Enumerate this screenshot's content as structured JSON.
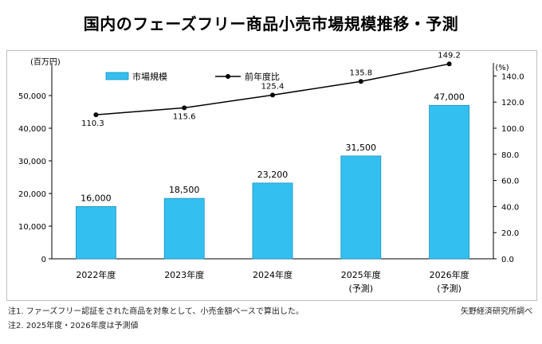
{
  "title": "国内のフェーズフリー商品小売市場規模推移・予測",
  "notes": {
    "note1": "注1. ファーズフリー認証をされた商品を対象として、小売金額ベースで算出した。",
    "note2": "注2. 2025年度・2026年度は予測値",
    "source": "矢野経済研究所調べ"
  },
  "colors": {
    "bar": "#33c0f0",
    "bar_stroke": "#1a8fc0",
    "line": "#000000"
  },
  "chart_data": {
    "type": "bar+line",
    "categories": [
      "2022年度",
      "2023年度",
      "2024年度",
      "2025年度",
      "2026年度"
    ],
    "category_sublabels": [
      "",
      "",
      "",
      "(予測)",
      "(予測)"
    ],
    "series": [
      {
        "name": "市場規模",
        "type": "bar",
        "axis": "left",
        "values": [
          16000,
          18500,
          23200,
          31500,
          47000
        ],
        "labels": [
          "16,000",
          "18,500",
          "23,200",
          "31,500",
          "47,000"
        ]
      },
      {
        "name": "前年度比",
        "type": "line",
        "axis": "right",
        "values": [
          110.3,
          115.6,
          125.4,
          135.8,
          149.2
        ],
        "labels": [
          "110.3",
          "115.6",
          "125.4",
          "135.8",
          "149.2"
        ]
      }
    ],
    "y_left": {
      "unit": "(百万円)",
      "ylim": [
        0,
        60000
      ],
      "ticks": [
        0,
        10000,
        20000,
        30000,
        40000,
        50000
      ],
      "tick_labels": [
        "0",
        "10,000",
        "20,000",
        "30,000",
        "40,000",
        "50,000"
      ]
    },
    "y_right": {
      "unit": "(%)",
      "ylim": [
        0,
        150
      ],
      "ticks": [
        0,
        20,
        40,
        60,
        80,
        100,
        120,
        140
      ],
      "tick_labels": [
        "0.0",
        "20.0",
        "40.0",
        "60.0",
        "80.0",
        "100.0",
        "120.0",
        "140.0"
      ]
    },
    "legend_position": "top-left",
    "grid": false
  }
}
